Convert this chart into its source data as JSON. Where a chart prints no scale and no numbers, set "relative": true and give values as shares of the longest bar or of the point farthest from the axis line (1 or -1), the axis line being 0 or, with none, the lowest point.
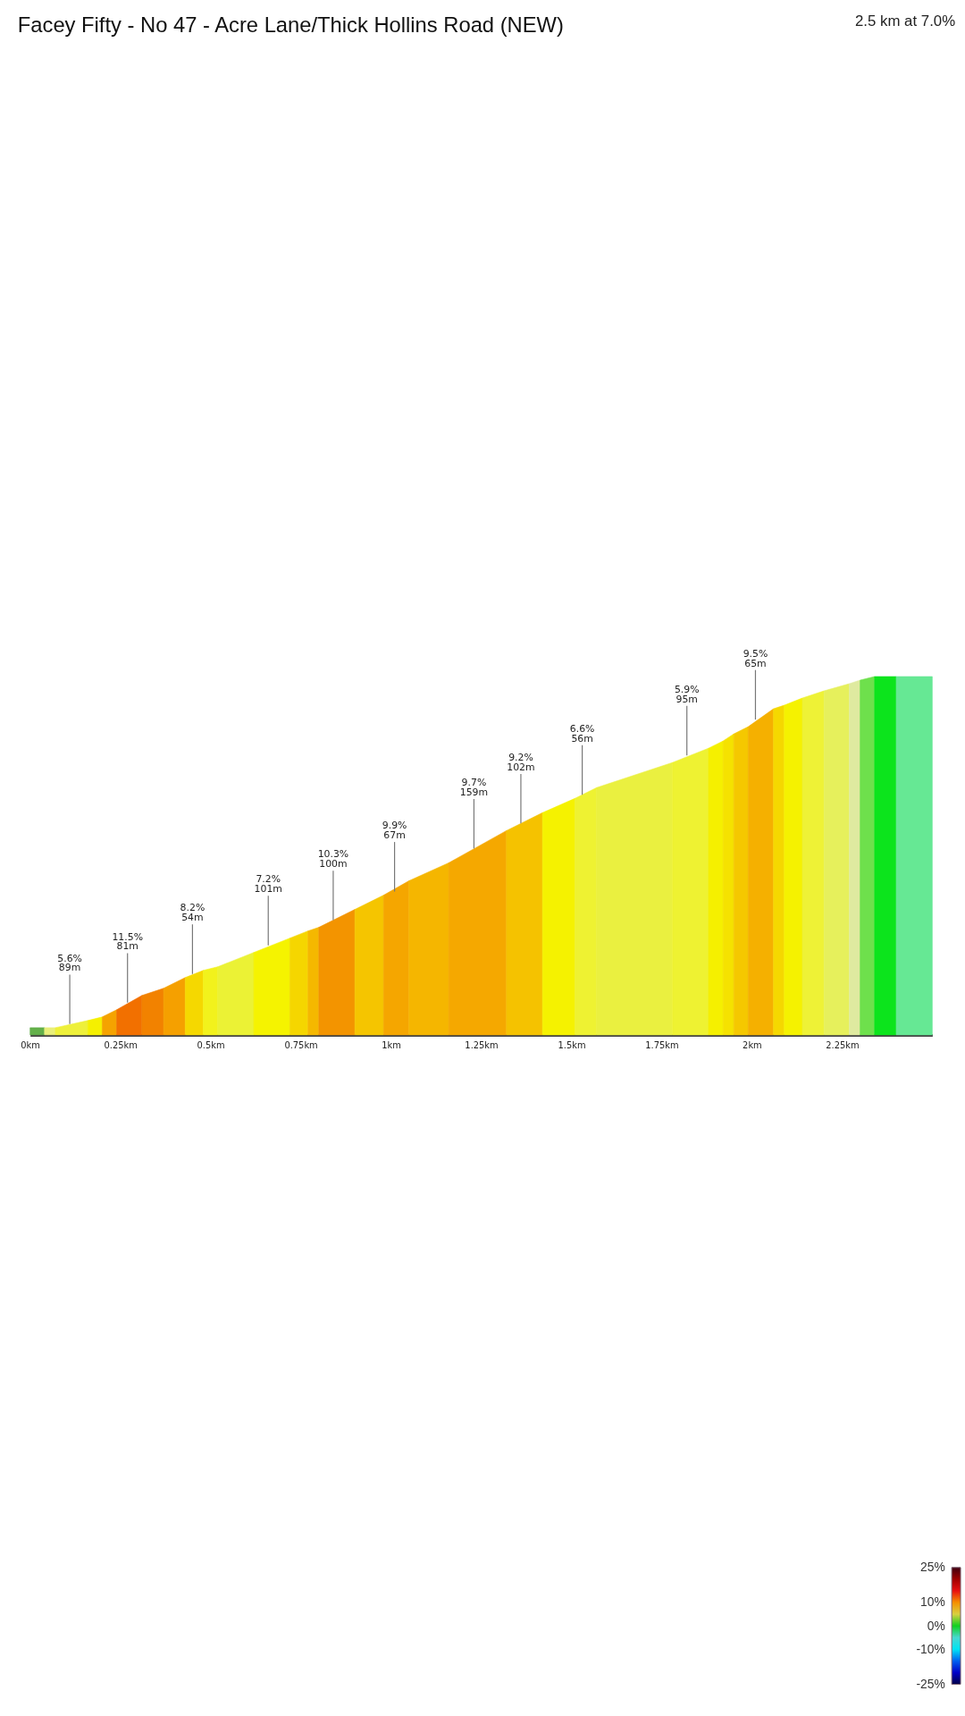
{
  "chart_data": {
    "type": "area",
    "title": "Facey Fifty - No 47 - Acre Lane/Thick Hollins Road (NEW)",
    "subtitle": "2.5 km at 7.0%",
    "relative": true,
    "series": [
      {
        "color": "#63b04a",
        "x": [
          0,
          0.04
        ],
        "values": [
          0.02,
          0.02
        ]
      },
      {
        "color": "#e9ef7a",
        "x": [
          0.04,
          0.07
        ],
        "values": [
          0.02,
          0.02
        ]
      },
      {
        "color": "#eef03a",
        "x": [
          0.07,
          0.16
        ],
        "values": [
          0.02,
          0.04
        ]
      },
      {
        "color": "#f5f000",
        "x": [
          0.16,
          0.2
        ],
        "values": [
          0.04,
          0.05
        ]
      },
      {
        "color": "#f5a300",
        "x": [
          0.2,
          0.24
        ],
        "values": [
          0.05,
          0.07
        ]
      },
      {
        "color": "#f27000",
        "x": [
          0.24,
          0.31
        ],
        "values": [
          0.07,
          0.11
        ]
      },
      {
        "color": "#f28200",
        "x": [
          0.31,
          0.37
        ],
        "values": [
          0.11,
          0.13
        ]
      },
      {
        "color": "#f5a000",
        "x": [
          0.37,
          0.43
        ],
        "values": [
          0.13,
          0.16
        ]
      },
      {
        "color": "#f5d800",
        "x": [
          0.43,
          0.48
        ],
        "values": [
          0.16,
          0.18
        ]
      },
      {
        "color": "#f2f21c",
        "x": [
          0.48,
          0.52
        ],
        "values": [
          0.18,
          0.19
        ]
      },
      {
        "color": "#ebf235",
        "x": [
          0.52,
          0.62
        ],
        "values": [
          0.19,
          0.23
        ]
      },
      {
        "color": "#f5f300",
        "x": [
          0.62,
          0.72
        ],
        "values": [
          0.23,
          0.27
        ]
      },
      {
        "color": "#f5d600",
        "x": [
          0.72,
          0.77
        ],
        "values": [
          0.27,
          0.29
        ]
      },
      {
        "color": "#f5b800",
        "x": [
          0.77,
          0.8
        ],
        "values": [
          0.29,
          0.3
        ]
      },
      {
        "color": "#f39400",
        "x": [
          0.8,
          0.9
        ],
        "values": [
          0.3,
          0.35
        ]
      },
      {
        "color": "#f5c500",
        "x": [
          0.9,
          0.98
        ],
        "values": [
          0.35,
          0.39
        ]
      },
      {
        "color": "#f5a600",
        "x": [
          0.98,
          1.05
        ],
        "values": [
          0.39,
          0.43
        ]
      },
      {
        "color": "#f5b600",
        "x": [
          1.05,
          1.16
        ],
        "values": [
          0.43,
          0.48
        ]
      },
      {
        "color": "#f5a800",
        "x": [
          1.16,
          1.32
        ],
        "values": [
          0.48,
          0.57
        ]
      },
      {
        "color": "#f5c200",
        "x": [
          1.32,
          1.42
        ],
        "values": [
          0.57,
          0.62
        ]
      },
      {
        "color": "#f5f200",
        "x": [
          1.42,
          1.51
        ],
        "values": [
          0.62,
          0.66
        ]
      },
      {
        "color": "#eef232",
        "x": [
          1.51,
          1.57
        ],
        "values": [
          0.66,
          0.69
        ]
      },
      {
        "color": "#eaf040",
        "x": [
          1.57,
          1.78
        ],
        "values": [
          0.69,
          0.76
        ]
      },
      {
        "color": "#eef232",
        "x": [
          1.78,
          1.88
        ],
        "values": [
          0.76,
          0.8
        ]
      },
      {
        "color": "#f5f000",
        "x": [
          1.88,
          1.92
        ],
        "values": [
          0.8,
          0.82
        ]
      },
      {
        "color": "#f5e200",
        "x": [
          1.92,
          1.95
        ],
        "values": [
          0.82,
          0.84
        ]
      },
      {
        "color": "#f5c800",
        "x": [
          1.95,
          1.99
        ],
        "values": [
          0.84,
          0.86
        ]
      },
      {
        "color": "#f5b000",
        "x": [
          1.99,
          2.06
        ],
        "values": [
          0.86,
          0.91
        ]
      },
      {
        "color": "#f5d800",
        "x": [
          2.06,
          2.09
        ],
        "values": [
          0.91,
          0.92
        ]
      },
      {
        "color": "#f5f200",
        "x": [
          2.09,
          2.14
        ],
        "values": [
          0.92,
          0.94
        ]
      },
      {
        "color": "#eef236",
        "x": [
          2.14,
          2.2
        ],
        "values": [
          0.94,
          0.96
        ]
      },
      {
        "color": "#e6f05c",
        "x": [
          2.2,
          2.27
        ],
        "values": [
          0.96,
          0.98
        ]
      },
      {
        "color": "#dfeaa0",
        "x": [
          2.27,
          2.3
        ],
        "values": [
          0.98,
          0.99
        ]
      },
      {
        "color": "#6ee04c",
        "x": [
          2.3,
          2.34
        ],
        "values": [
          0.99,
          1
        ]
      },
      {
        "color": "#0ce41c",
        "x": [
          2.34,
          2.4
        ],
        "values": [
          1,
          1
        ]
      },
      {
        "color": "#66e894",
        "x": [
          2.4,
          2.5
        ],
        "values": [
          1,
          1
        ]
      }
    ],
    "xlim": [
      0,
      2.5
    ],
    "xticks": [
      {
        "value": 0,
        "label": "0km"
      },
      {
        "value": 0.25,
        "label": "0.25km"
      },
      {
        "value": 0.5,
        "label": "0.5km"
      },
      {
        "value": 0.75,
        "label": "0.75km"
      },
      {
        "value": 1,
        "label": "1km"
      },
      {
        "value": 1.25,
        "label": "1.25km"
      },
      {
        "value": 1.5,
        "label": "1.5km"
      },
      {
        "value": 1.75,
        "label": "1.75km"
      },
      {
        "value": 2,
        "label": "2km"
      },
      {
        "value": 2.25,
        "label": "2.25km"
      }
    ],
    "annotations": [
      {
        "text": "5.6%\n89m",
        "x": 0.11,
        "y": 0.03
      },
      {
        "text": "11.5%\n81m",
        "x": 0.27,
        "y": 0.09
      },
      {
        "text": "8.2%\n54m",
        "x": 0.45,
        "y": 0.17
      },
      {
        "text": "7.2%\n101m",
        "x": 0.66,
        "y": 0.25
      },
      {
        "text": "10.3%\n100m",
        "x": 0.84,
        "y": 0.32
      },
      {
        "text": "9.9%\n67m",
        "x": 1.01,
        "y": 0.4
      },
      {
        "text": "9.7%\n159m",
        "x": 1.23,
        "y": 0.52
      },
      {
        "text": "9.2%\n102m",
        "x": 1.36,
        "y": 0.59
      },
      {
        "text": "6.6%\n56m",
        "x": 1.53,
        "y": 0.67
      },
      {
        "text": "5.9%\n95m",
        "x": 1.82,
        "y": 0.78
      },
      {
        "text": "9.5%\n65m",
        "x": 2.01,
        "y": 0.88
      }
    ],
    "clim": [
      -25,
      25
    ],
    "cticks": [
      {
        "value": 25,
        "label": "25%"
      },
      {
        "value": 10,
        "label": "10%"
      },
      {
        "value": 0,
        "label": "0%"
      },
      {
        "value": -10,
        "label": "-10%"
      },
      {
        "value": -25,
        "label": "-25%"
      }
    ]
  }
}
